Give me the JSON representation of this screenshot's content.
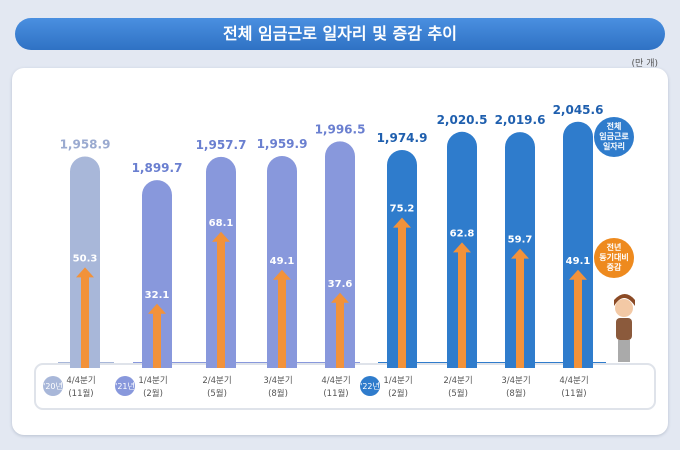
{
  "title": "전체 임금근로 일자리 및 증감 추이",
  "unit": "(만 개)",
  "legend": {
    "total": "전체\n임금근로\n일자리",
    "change": "전년\n동기대비\n증감"
  },
  "colors": {
    "y20": "#a8b7d9",
    "y21": "#8898dc",
    "y22": "#2f7ccc",
    "arrow": "#f2923a",
    "title_bar": "#3a80d2"
  },
  "chart_data": {
    "type": "bar",
    "title": "전체 임금근로 일자리 및 증감 추이",
    "ylabel": "(만 개)",
    "years": [
      {
        "label": "'20년",
        "start": 0
      },
      {
        "label": "'21년",
        "start": 1
      },
      {
        "label": "'22년",
        "start": 5
      }
    ],
    "categories": [
      "4/4분기\n(11월)",
      "1/4분기\n(2월)",
      "2/4분기\n(5월)",
      "3/4분기\n(8월)",
      "4/4분기\n(11월)",
      "1/4분기\n(2월)",
      "2/4분기\n(5월)",
      "3/4분기\n(8월)",
      "4/4분기\n(11월)"
    ],
    "series": [
      {
        "name": "전체 임금근로 일자리",
        "values": [
          1958.9,
          1899.7,
          1957.7,
          1959.9,
          1996.5,
          1974.9,
          2020.5,
          2019.6,
          2045.6
        ],
        "labels": [
          "1,958.9",
          "1,899.7",
          "1,957.7",
          "1,959.9",
          "1,996.5",
          "1,974.9",
          "2,020.5",
          "2,019.6",
          "2,045.6"
        ]
      },
      {
        "name": "전년 동기대비 증감",
        "values": [
          50.3,
          32.1,
          68.1,
          49.1,
          37.6,
          75.2,
          62.8,
          59.7,
          49.1
        ]
      }
    ]
  }
}
